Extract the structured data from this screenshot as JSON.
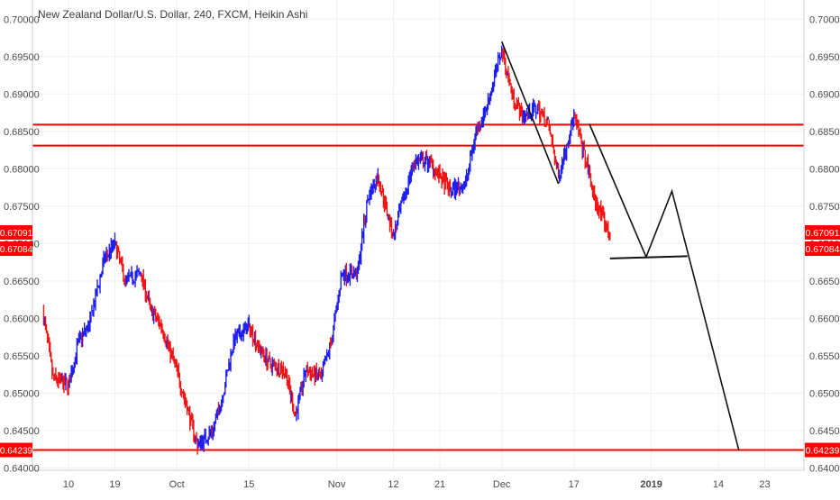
{
  "header": {
    "title": "New Zealand Dollar/U.S. Dollar, 240, FXCM, Heikin Ashi"
  },
  "colors": {
    "up": "#1f1ff0",
    "down": "#f01414",
    "level_line": "#ff0000",
    "drawing": "#111111",
    "badge_bg": "#ff0000",
    "badge_text": "#ffffff",
    "grid": "#eef0f3",
    "axis_text": "#4a4a4a"
  },
  "chart_data": {
    "type": "line",
    "title": "New Zealand Dollar/U.S. Dollar, 240, FXCM, Heikin Ashi",
    "xlabel": "",
    "ylabel": "",
    "ylim": [
      0.64,
      0.7
    ],
    "x_tick_labels": [
      "10",
      "19",
      "Oct",
      "15",
      "Nov",
      "12",
      "21",
      "Dec",
      "17",
      "2019",
      "14",
      "23"
    ],
    "y_tick_labels": [
      "0.70000",
      "0.69500",
      "0.69000",
      "0.68500",
      "0.68000",
      "0.67500",
      "0.67000",
      "0.66500",
      "0.66000",
      "0.65500",
      "0.65000",
      "0.64500",
      "0.64000"
    ],
    "y_ticks": [
      0.7,
      0.695,
      0.69,
      0.685,
      0.68,
      0.675,
      0.67,
      0.665,
      0.66,
      0.655,
      0.65,
      0.645,
      0.64
    ],
    "grid": true,
    "series": [
      {
        "color_key": "up_down",
        "x": [
          "Sep 05",
          "Sep 07",
          "Sep 10",
          "Sep 12",
          "Sep 14",
          "Sep 17",
          "Sep 19",
          "Sep 21",
          "Sep 24",
          "Sep 26",
          "Sep 28",
          "Oct 01",
          "Oct 03",
          "Oct 05",
          "Oct 08",
          "Oct 10",
          "Oct 12",
          "Oct 15",
          "Oct 17",
          "Oct 19",
          "Oct 22",
          "Oct 24",
          "Oct 26",
          "Oct 29",
          "Oct 31",
          "Nov 02",
          "Nov 05",
          "Nov 07",
          "Nov 09",
          "Nov 12",
          "Nov 14",
          "Nov 16",
          "Nov 19",
          "Nov 21",
          "Nov 23",
          "Nov 26",
          "Nov 28",
          "Nov 30",
          "Dec 03",
          "Dec 05",
          "Dec 07",
          "Dec 10",
          "Dec 12",
          "Dec 14",
          "Dec 17",
          "Dec 19",
          "Dec 21",
          "Dec 24"
        ],
        "values": [
          0.661,
          0.652,
          0.651,
          0.657,
          0.659,
          0.668,
          0.67,
          0.665,
          0.666,
          0.661,
          0.659,
          0.653,
          0.648,
          0.643,
          0.645,
          0.65,
          0.657,
          0.659,
          0.656,
          0.654,
          0.653,
          0.647,
          0.653,
          0.652,
          0.657,
          0.666,
          0.666,
          0.676,
          0.679,
          0.671,
          0.676,
          0.681,
          0.681,
          0.679,
          0.677,
          0.678,
          0.685,
          0.688,
          0.696,
          0.69,
          0.687,
          0.688,
          0.686,
          0.679,
          0.687,
          0.682,
          0.676,
          0.671
        ]
      }
    ],
    "horizontal_levels": [
      0.6859,
      0.6831,
      0.64239
    ],
    "price_badges_right": [
      "0.67091",
      "0.67084",
      "0.64239"
    ],
    "price_badges_left": [
      "0.67091",
      "0.67084",
      "0.64239"
    ],
    "drawings": [
      {
        "type": "polyline",
        "points": [
          [
            "Dec 03",
            0.697
          ],
          [
            "Dec 14",
            0.678
          ]
        ]
      },
      {
        "type": "polyline",
        "points": [
          [
            "Dec 20",
            0.686
          ],
          [
            "Dec 31",
            0.6682
          ],
          [
            "Jan 05",
            0.677
          ],
          [
            "Jan 18",
            0.6423
          ]
        ]
      },
      {
        "type": "segment",
        "points": [
          [
            "Dec 24",
            0.668
          ],
          [
            "Jan 08",
            0.6683
          ]
        ]
      }
    ]
  }
}
